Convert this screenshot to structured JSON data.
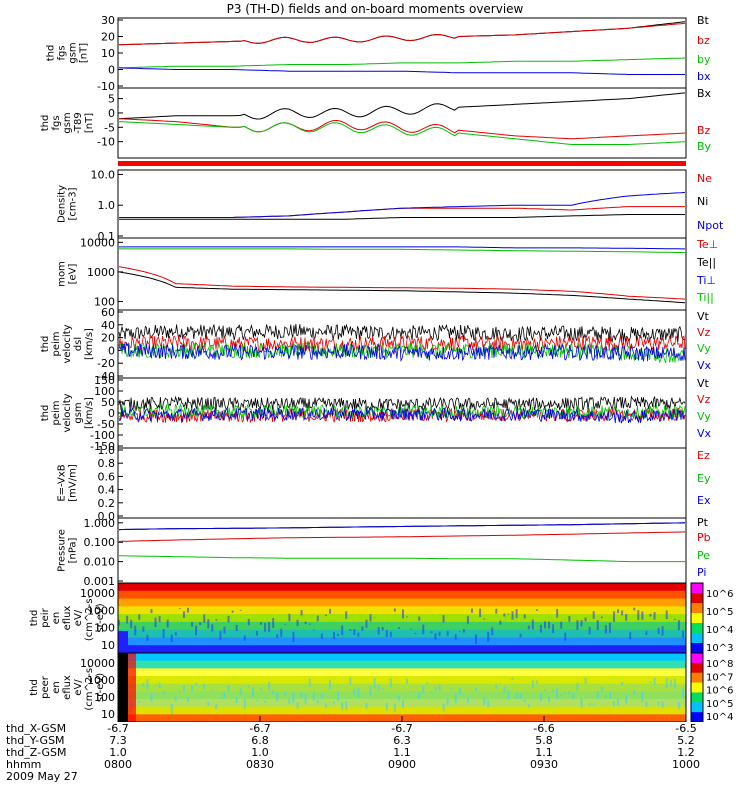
{
  "title": "P3 (TH-D) fields and on-board moments overview",
  "colors": {
    "black": "#000000",
    "red": "#e00000",
    "green": "#00c000",
    "blue": "#0000dd"
  },
  "chart_data": [
    {
      "type": "line",
      "id": "p1",
      "ylabel": [
        "thd",
        "fgs",
        "gsm",
        "[nT]"
      ],
      "ylim": [
        -10,
        30
      ],
      "yticks": [
        "30",
        "20",
        "10",
        "0",
        "-10"
      ],
      "series": [
        {
          "name": "Bt",
          "color": "#000000",
          "values": [
            15,
            16,
            17,
            18,
            18,
            19,
            20,
            21,
            23,
            25,
            29
          ]
        },
        {
          "name": "bz",
          "color": "#e00000",
          "values": [
            15,
            16,
            17,
            18,
            18,
            19,
            20,
            21,
            23,
            25,
            28
          ]
        },
        {
          "name": "by",
          "color": "#00c000",
          "values": [
            1,
            2,
            2,
            3,
            3,
            4,
            4,
            5,
            5,
            6,
            7
          ]
        },
        {
          "name": "bx",
          "color": "#0000dd",
          "values": [
            1,
            0,
            0,
            -1,
            -1,
            -1,
            -2,
            -2,
            -2,
            -3,
            -3
          ]
        }
      ]
    },
    {
      "type": "line",
      "id": "p2",
      "ylabel": [
        "thd",
        "fgs",
        "gsm",
        "-T89",
        "[nT]"
      ],
      "ylim": [
        -15,
        8
      ],
      "yticks": [
        "5",
        "0",
        "-5",
        "-10"
      ],
      "series": [
        {
          "name": "Bx",
          "color": "#000000",
          "values": [
            -2,
            -1,
            -1,
            0,
            0,
            1,
            2,
            3,
            4,
            5,
            7
          ]
        },
        {
          "name": "Bz",
          "color": "#e00000",
          "values": [
            -2,
            -3,
            -5,
            -5,
            -4,
            -5,
            -6,
            -8,
            -9,
            -8,
            -7
          ]
        },
        {
          "name": "By",
          "color": "#00c000",
          "values": [
            -3,
            -4,
            -5,
            -5,
            -5,
            -6,
            -7,
            -9,
            -11,
            -11,
            -10
          ]
        }
      ]
    },
    {
      "type": "line",
      "id": "p3",
      "scale": "log",
      "ylabel": [
        "Density",
        "[cm-3]"
      ],
      "ylim": [
        0.1,
        12
      ],
      "yticks": [
        "10.0",
        "1.0",
        "0.1"
      ],
      "series": [
        {
          "name": "Ne",
          "color": "#e00000",
          "values": [
            0.4,
            0.4,
            0.4,
            0.45,
            0.6,
            0.8,
            0.8,
            0.8,
            0.7,
            0.9,
            0.9
          ]
        },
        {
          "name": "Ni",
          "color": "#000000",
          "values": [
            0.35,
            0.35,
            0.35,
            0.35,
            0.35,
            0.4,
            0.4,
            0.4,
            0.45,
            0.5,
            0.5
          ]
        },
        {
          "name": "Npot",
          "color": "#0000dd",
          "values": [
            0.4,
            0.4,
            0.4,
            0.45,
            0.6,
            0.8,
            0.9,
            1.0,
            1.0,
            2.0,
            2.6
          ]
        }
      ]
    },
    {
      "type": "line",
      "id": "p4",
      "scale": "log",
      "ylabel": [
        "mom",
        "[eV]"
      ],
      "ylim": [
        60,
        12000
      ],
      "yticks": [
        "10000",
        "1000",
        "100"
      ],
      "series": [
        {
          "name": "Te⊥",
          "color": "#e00000",
          "values": [
            1500,
            400,
            330,
            310,
            300,
            290,
            280,
            260,
            220,
            150,
            120
          ]
        },
        {
          "name": "Te||",
          "color": "#000000",
          "values": [
            1000,
            300,
            260,
            250,
            240,
            230,
            210,
            190,
            160,
            120,
            90
          ]
        },
        {
          "name": "Ti⊥",
          "color": "#0000dd",
          "values": [
            7000,
            7000,
            7000,
            7000,
            7000,
            7000,
            7000,
            6500,
            6500,
            6300,
            6000
          ]
        },
        {
          "name": "Ti||",
          "color": "#00c000",
          "values": [
            6000,
            6000,
            6000,
            6000,
            5800,
            5800,
            5500,
            5200,
            5000,
            4800,
            4500
          ]
        }
      ]
    },
    {
      "type": "line",
      "id": "p5",
      "ylabel": [
        "thd",
        "peim",
        "velocity",
        "dsl",
        "[km/s]"
      ],
      "ylim": [
        -40,
        60
      ],
      "yticks": [
        "60",
        "40",
        "20",
        "0",
        "-20",
        "-40"
      ],
      "series": [
        {
          "name": "Vt",
          "color": "#000000",
          "values": [
            25,
            30,
            28,
            30,
            28,
            27,
            28,
            26,
            27,
            25,
            25
          ]
        },
        {
          "name": "Vz",
          "color": "#e00000",
          "values": [
            10,
            12,
            10,
            11,
            10,
            12,
            11,
            10,
            12,
            11,
            12
          ]
        },
        {
          "name": "Vy",
          "color": "#00c000",
          "values": [
            0,
            0,
            0,
            0,
            0,
            0,
            0,
            0,
            0,
            -5,
            -8
          ]
        },
        {
          "name": "Vx",
          "color": "#0000dd",
          "values": [
            0,
            -2,
            -3,
            -3,
            -2,
            -4,
            -4,
            -3,
            -3,
            -5,
            -5
          ]
        }
      ]
    },
    {
      "type": "line",
      "id": "p6",
      "ylabel": [
        "thd",
        "peim",
        "velocity",
        "gsm",
        "[km/s]"
      ],
      "ylim": [
        -150,
        150
      ],
      "yticks": [
        "150",
        "100",
        "50",
        "0",
        "-50",
        "-100",
        "-150"
      ],
      "series": [
        {
          "name": "Vt",
          "color": "#000000",
          "values": [
            40,
            45,
            40,
            40,
            40,
            38,
            40,
            40,
            42,
            45,
            40
          ]
        },
        {
          "name": "Vz",
          "color": "#e00000",
          "values": [
            -10,
            -15,
            -15,
            -10,
            -12,
            -10,
            -10,
            -8,
            -10,
            -10,
            -5
          ]
        },
        {
          "name": "Vy",
          "color": "#00c000",
          "values": [
            5,
            10,
            5,
            10,
            5,
            5,
            5,
            5,
            5,
            5,
            5
          ]
        },
        {
          "name": "Vx",
          "color": "#0000dd",
          "values": [
            -5,
            -10,
            -5,
            -5,
            -5,
            -5,
            -8,
            -5,
            -10,
            -20,
            -5
          ]
        }
      ]
    },
    {
      "type": "line",
      "id": "p7",
      "ylabel": [
        "E=-VxB",
        "[mV/m]"
      ],
      "ylim": [
        0,
        1
      ],
      "yticks": [
        "1.0",
        "0.8",
        "0.6",
        "0.4",
        "0.2",
        "0.0"
      ],
      "series": [
        {
          "name": "Ez",
          "color": "#e00000",
          "values": []
        },
        {
          "name": "Ey",
          "color": "#00c000",
          "values": []
        },
        {
          "name": "Ex",
          "color": "#0000dd",
          "values": []
        }
      ]
    },
    {
      "type": "line",
      "id": "p8",
      "scale": "log",
      "ylabel": [
        "Pressure",
        "[nPa]"
      ],
      "ylim": [
        0.001,
        1.4
      ],
      "yticks": [
        "1.000",
        "0.100",
        "0.010",
        "0.001"
      ],
      "series": [
        {
          "name": "Pt",
          "color": "#000000",
          "values": [
            0.45,
            0.5,
            0.52,
            0.55,
            0.6,
            0.65,
            0.7,
            0.75,
            0.8,
            0.9,
            1.0
          ]
        },
        {
          "name": "Pb",
          "color": "#e00000",
          "values": [
            0.11,
            0.13,
            0.15,
            0.17,
            0.18,
            0.19,
            0.21,
            0.23,
            0.26,
            0.3,
            0.34
          ]
        },
        {
          "name": "Pe",
          "color": "#00c000",
          "values": [
            0.02,
            0.018,
            0.016,
            0.015,
            0.015,
            0.015,
            0.014,
            0.014,
            0.012,
            0.01,
            0.01
          ]
        },
        {
          "name": "Pi",
          "color": "#0000dd",
          "values": [
            0.45,
            0.5,
            0.52,
            0.55,
            0.6,
            0.65,
            0.7,
            0.75,
            0.8,
            0.9,
            1.0
          ]
        }
      ]
    },
    {
      "type": "heatmap",
      "id": "p9",
      "ylabel": [
        "thd",
        "peir",
        "en",
        "eflux",
        "eV/",
        "(cm^2-s-",
        "sr-eV)"
      ],
      "yticks": [
        "10000",
        "1000",
        "100",
        "10"
      ],
      "colorbar": [
        "10^6",
        "10^5",
        "10^4",
        "10^3"
      ]
    },
    {
      "type": "heatmap",
      "id": "p10",
      "ylabel": [
        "thd",
        "peer",
        "en",
        "eflux",
        "eV/",
        "(cm^2-s-",
        "sr-eV)"
      ],
      "yticks": [
        "10000",
        "1000",
        "100",
        "10"
      ],
      "colorbar": [
        "10^8",
        "10^7",
        "10^6",
        "10^5",
        "10^4"
      ]
    }
  ],
  "footer": {
    "rows": [
      {
        "label": "thd_X-GSM",
        "values": [
          "-6.7",
          "-6.7",
          "-6.7",
          "-6.6",
          "-6.5"
        ]
      },
      {
        "label": "thd_Y-GSM",
        "values": [
          "7.3",
          "6.8",
          "6.3",
          "5.8",
          "5.2"
        ]
      },
      {
        "label": "thd_Z-GSM",
        "values": [
          "1.0",
          "1.0",
          "1.1",
          "1.1",
          "1.2"
        ]
      },
      {
        "label": "hhmm",
        "values": [
          "0800",
          "0830",
          "0900",
          "0930",
          "1000"
        ]
      }
    ],
    "date": "2009 May 27"
  }
}
